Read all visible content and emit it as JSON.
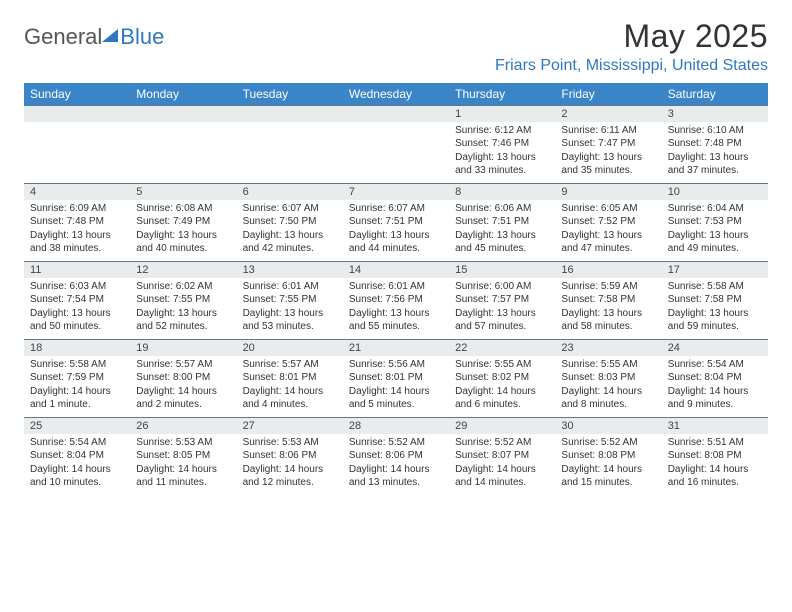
{
  "brand": {
    "part1": "General",
    "part2": "Blue"
  },
  "title": "May 2025",
  "location": "Friars Point, Mississippi, United States",
  "colors": {
    "header_bg": "#3a84c8",
    "daynum_bg": "#e8eced",
    "accent": "#2f78bf",
    "rule": "#6a7680"
  },
  "day_headers": [
    "Sunday",
    "Monday",
    "Tuesday",
    "Wednesday",
    "Thursday",
    "Friday",
    "Saturday"
  ],
  "weeks": [
    [
      {
        "n": "",
        "rise": "",
        "set": "",
        "day": ""
      },
      {
        "n": "",
        "rise": "",
        "set": "",
        "day": ""
      },
      {
        "n": "",
        "rise": "",
        "set": "",
        "day": ""
      },
      {
        "n": "",
        "rise": "",
        "set": "",
        "day": ""
      },
      {
        "n": "1",
        "rise": "Sunrise: 6:12 AM",
        "set": "Sunset: 7:46 PM",
        "day": "Daylight: 13 hours and 33 minutes."
      },
      {
        "n": "2",
        "rise": "Sunrise: 6:11 AM",
        "set": "Sunset: 7:47 PM",
        "day": "Daylight: 13 hours and 35 minutes."
      },
      {
        "n": "3",
        "rise": "Sunrise: 6:10 AM",
        "set": "Sunset: 7:48 PM",
        "day": "Daylight: 13 hours and 37 minutes."
      }
    ],
    [
      {
        "n": "4",
        "rise": "Sunrise: 6:09 AM",
        "set": "Sunset: 7:48 PM",
        "day": "Daylight: 13 hours and 38 minutes."
      },
      {
        "n": "5",
        "rise": "Sunrise: 6:08 AM",
        "set": "Sunset: 7:49 PM",
        "day": "Daylight: 13 hours and 40 minutes."
      },
      {
        "n": "6",
        "rise": "Sunrise: 6:07 AM",
        "set": "Sunset: 7:50 PM",
        "day": "Daylight: 13 hours and 42 minutes."
      },
      {
        "n": "7",
        "rise": "Sunrise: 6:07 AM",
        "set": "Sunset: 7:51 PM",
        "day": "Daylight: 13 hours and 44 minutes."
      },
      {
        "n": "8",
        "rise": "Sunrise: 6:06 AM",
        "set": "Sunset: 7:51 PM",
        "day": "Daylight: 13 hours and 45 minutes."
      },
      {
        "n": "9",
        "rise": "Sunrise: 6:05 AM",
        "set": "Sunset: 7:52 PM",
        "day": "Daylight: 13 hours and 47 minutes."
      },
      {
        "n": "10",
        "rise": "Sunrise: 6:04 AM",
        "set": "Sunset: 7:53 PM",
        "day": "Daylight: 13 hours and 49 minutes."
      }
    ],
    [
      {
        "n": "11",
        "rise": "Sunrise: 6:03 AM",
        "set": "Sunset: 7:54 PM",
        "day": "Daylight: 13 hours and 50 minutes."
      },
      {
        "n": "12",
        "rise": "Sunrise: 6:02 AM",
        "set": "Sunset: 7:55 PM",
        "day": "Daylight: 13 hours and 52 minutes."
      },
      {
        "n": "13",
        "rise": "Sunrise: 6:01 AM",
        "set": "Sunset: 7:55 PM",
        "day": "Daylight: 13 hours and 53 minutes."
      },
      {
        "n": "14",
        "rise": "Sunrise: 6:01 AM",
        "set": "Sunset: 7:56 PM",
        "day": "Daylight: 13 hours and 55 minutes."
      },
      {
        "n": "15",
        "rise": "Sunrise: 6:00 AM",
        "set": "Sunset: 7:57 PM",
        "day": "Daylight: 13 hours and 57 minutes."
      },
      {
        "n": "16",
        "rise": "Sunrise: 5:59 AM",
        "set": "Sunset: 7:58 PM",
        "day": "Daylight: 13 hours and 58 minutes."
      },
      {
        "n": "17",
        "rise": "Sunrise: 5:58 AM",
        "set": "Sunset: 7:58 PM",
        "day": "Daylight: 13 hours and 59 minutes."
      }
    ],
    [
      {
        "n": "18",
        "rise": "Sunrise: 5:58 AM",
        "set": "Sunset: 7:59 PM",
        "day": "Daylight: 14 hours and 1 minute."
      },
      {
        "n": "19",
        "rise": "Sunrise: 5:57 AM",
        "set": "Sunset: 8:00 PM",
        "day": "Daylight: 14 hours and 2 minutes."
      },
      {
        "n": "20",
        "rise": "Sunrise: 5:57 AM",
        "set": "Sunset: 8:01 PM",
        "day": "Daylight: 14 hours and 4 minutes."
      },
      {
        "n": "21",
        "rise": "Sunrise: 5:56 AM",
        "set": "Sunset: 8:01 PM",
        "day": "Daylight: 14 hours and 5 minutes."
      },
      {
        "n": "22",
        "rise": "Sunrise: 5:55 AM",
        "set": "Sunset: 8:02 PM",
        "day": "Daylight: 14 hours and 6 minutes."
      },
      {
        "n": "23",
        "rise": "Sunrise: 5:55 AM",
        "set": "Sunset: 8:03 PM",
        "day": "Daylight: 14 hours and 8 minutes."
      },
      {
        "n": "24",
        "rise": "Sunrise: 5:54 AM",
        "set": "Sunset: 8:04 PM",
        "day": "Daylight: 14 hours and 9 minutes."
      }
    ],
    [
      {
        "n": "25",
        "rise": "Sunrise: 5:54 AM",
        "set": "Sunset: 8:04 PM",
        "day": "Daylight: 14 hours and 10 minutes."
      },
      {
        "n": "26",
        "rise": "Sunrise: 5:53 AM",
        "set": "Sunset: 8:05 PM",
        "day": "Daylight: 14 hours and 11 minutes."
      },
      {
        "n": "27",
        "rise": "Sunrise: 5:53 AM",
        "set": "Sunset: 8:06 PM",
        "day": "Daylight: 14 hours and 12 minutes."
      },
      {
        "n": "28",
        "rise": "Sunrise: 5:52 AM",
        "set": "Sunset: 8:06 PM",
        "day": "Daylight: 14 hours and 13 minutes."
      },
      {
        "n": "29",
        "rise": "Sunrise: 5:52 AM",
        "set": "Sunset: 8:07 PM",
        "day": "Daylight: 14 hours and 14 minutes."
      },
      {
        "n": "30",
        "rise": "Sunrise: 5:52 AM",
        "set": "Sunset: 8:08 PM",
        "day": "Daylight: 14 hours and 15 minutes."
      },
      {
        "n": "31",
        "rise": "Sunrise: 5:51 AM",
        "set": "Sunset: 8:08 PM",
        "day": "Daylight: 14 hours and 16 minutes."
      }
    ]
  ]
}
